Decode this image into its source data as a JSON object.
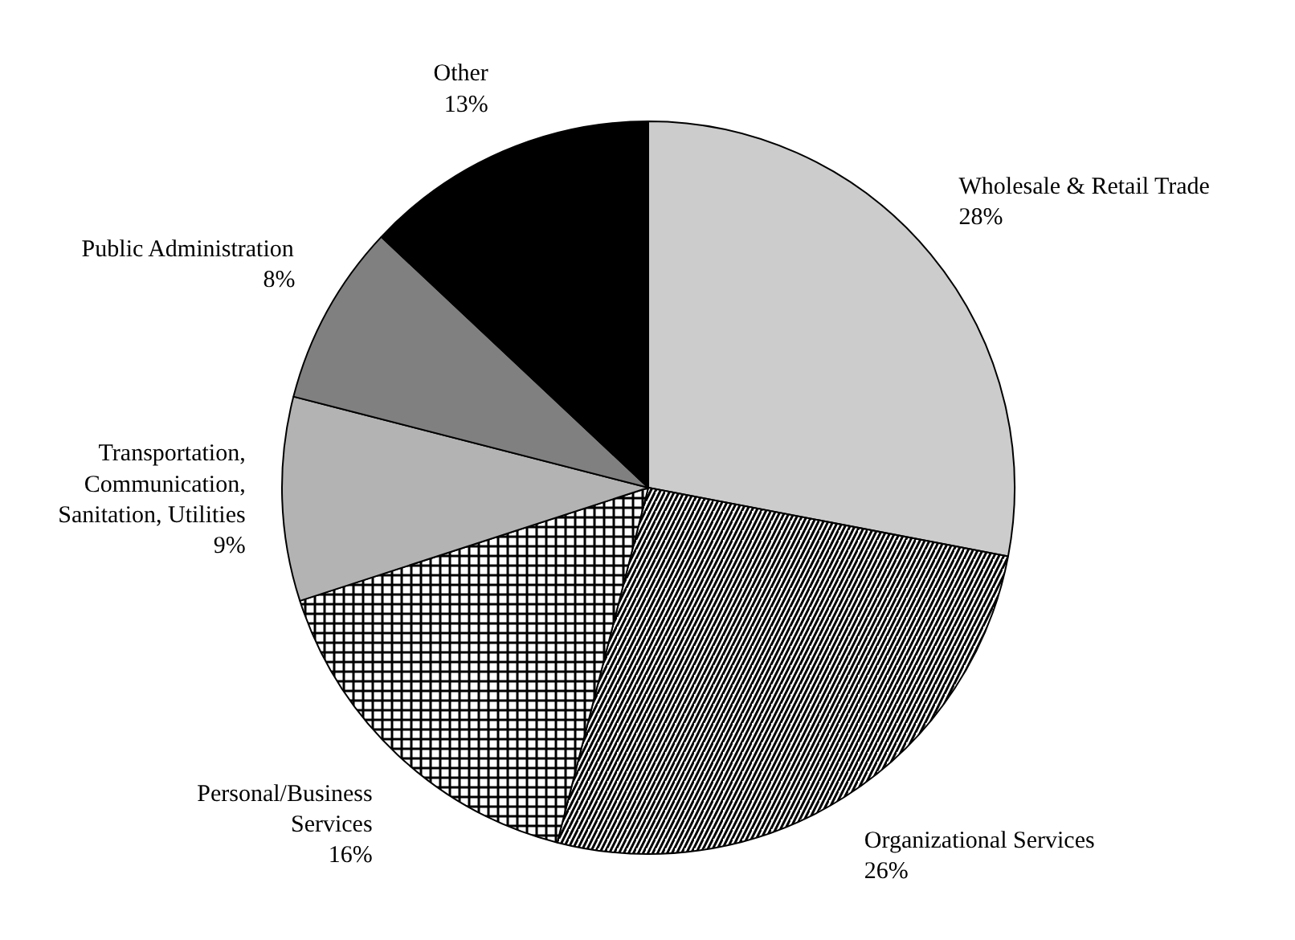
{
  "chart_data": {
    "type": "pie",
    "categories": [
      "Wholesale & Retail Trade",
      "Organizational Services",
      "Personal/Business\nServices",
      "Transportation,\nCommunication,\nSanitation, Utilities",
      "Public Administration",
      "Other"
    ],
    "values": [
      28,
      26,
      16,
      9,
      8,
      13
    ],
    "value_labels": [
      "28%",
      "26%",
      "16%",
      "9%",
      "8%",
      "13%"
    ],
    "colors": [
      "#cccccc",
      "#ffffff",
      "#ffffff",
      "#b3b3b3",
      "#808080",
      "#000000"
    ]
  }
}
